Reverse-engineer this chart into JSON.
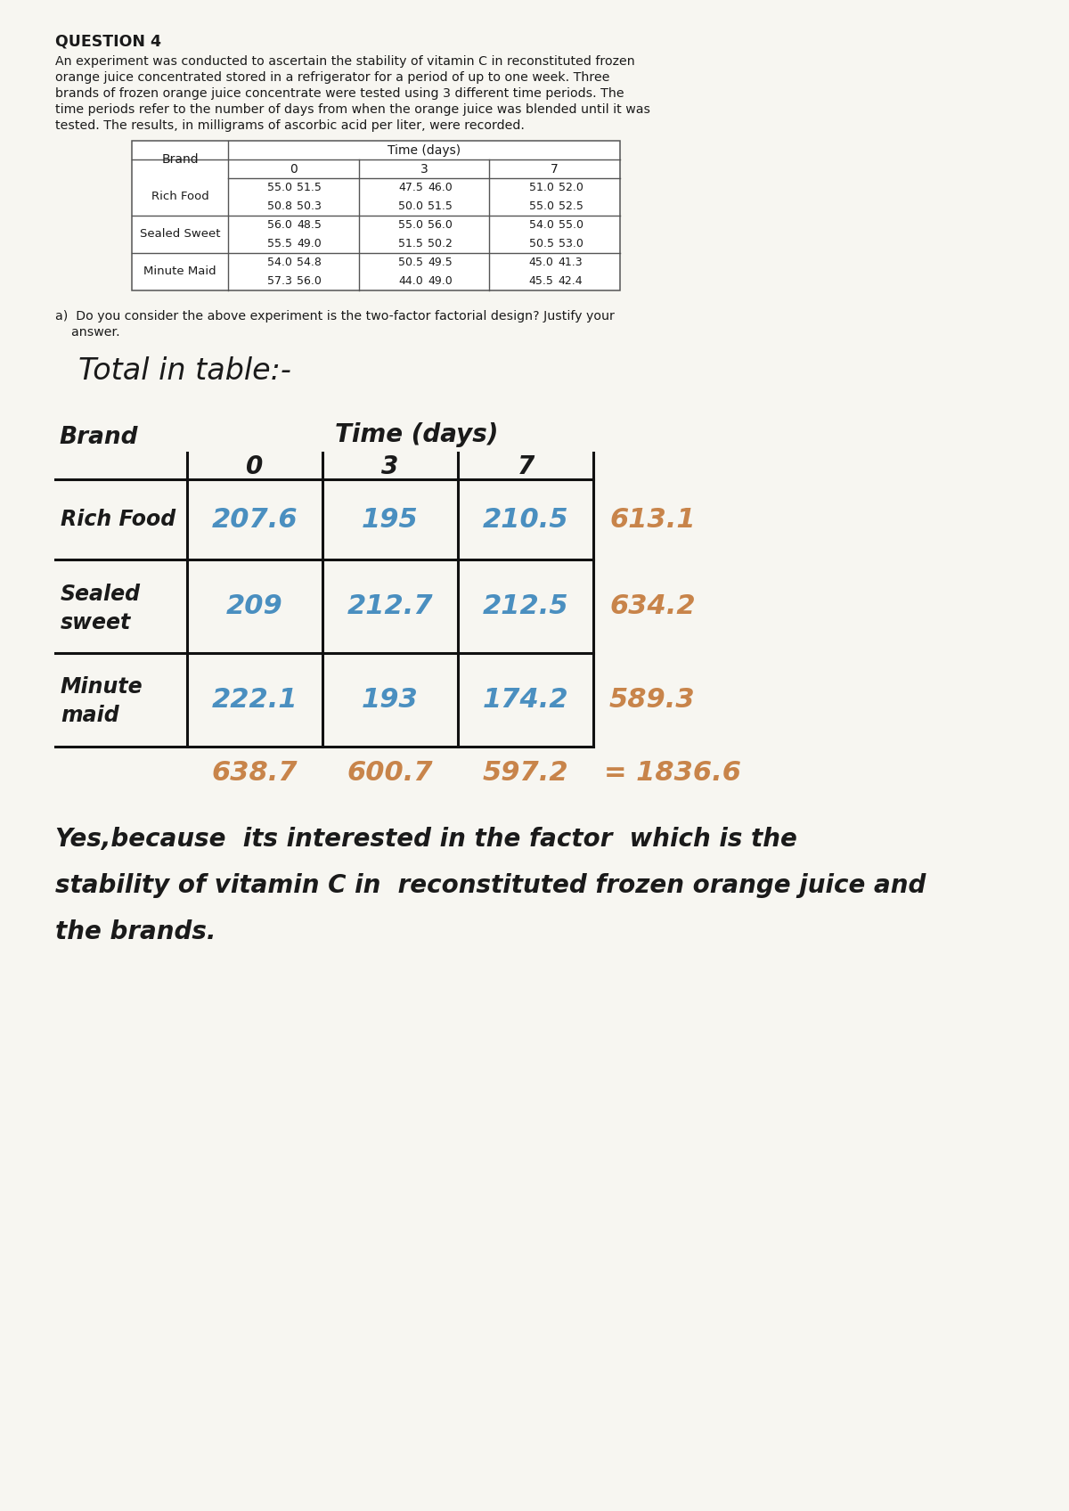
{
  "background_color": "#f7f6f1",
  "question_title": "QUESTION 4",
  "question_text": "An experiment was conducted to ascertain the stability of vitamin C in reconstituted frozen\norange juice concentrated stored in a refrigerator for a period of up to one week. Three\nbrands of frozen orange juice concentrate were tested using 3 different time periods. The\ntime periods refer to the number of days from when the orange juice was blended until it was\ntested. The results, in milligrams of ascorbic acid per liter, were recorded.",
  "data_table": {
    "col_header": "Time (days)",
    "col_subheaders": [
      "0",
      "3",
      "7"
    ],
    "brands": [
      "Rich Food",
      "Sealed Sweet",
      "Minute Maid"
    ],
    "row1": [
      [
        "55.0",
        "51.5"
      ],
      [
        "47.5",
        "46.0"
      ],
      [
        "51.0",
        "52.0"
      ]
    ],
    "row2": [
      [
        "50.8",
        "50.3"
      ],
      [
        "50.0",
        "51.5"
      ],
      [
        "55.0",
        "52.5"
      ]
    ],
    "row3": [
      [
        "56.0",
        "48.5"
      ],
      [
        "55.0",
        "56.0"
      ],
      [
        "54.0",
        "55.0"
      ]
    ],
    "row4": [
      [
        "55.5",
        "49.0"
      ],
      [
        "51.5",
        "50.2"
      ],
      [
        "50.5",
        "53.0"
      ]
    ],
    "row5": [
      [
        "54.0",
        "54.8"
      ],
      [
        "50.5",
        "49.5"
      ],
      [
        "45.0",
        "41.3"
      ]
    ],
    "row6": [
      [
        "57.3",
        "56.0"
      ],
      [
        "44.0",
        "49.0"
      ],
      [
        "45.5",
        "42.4"
      ]
    ]
  },
  "part_a_text": "a)  Do you consider the above experiment is the two-factor factorial design? Justify your\n    answer.",
  "total_label": "Total in table:-",
  "handwritten_table": {
    "col_subheaders": [
      "0",
      "3",
      "7"
    ],
    "data_blue": [
      [
        "207.6",
        "195",
        "210.5"
      ],
      [
        "209",
        "212.7",
        "212.5"
      ],
      [
        "222.1",
        "193",
        "174.2"
      ]
    ],
    "row_labels_line1": [
      "Rich Food",
      "Sealed",
      "Minute"
    ],
    "row_labels_line2": [
      "",
      "sweet",
      "maid"
    ],
    "row_totals": [
      "613.1",
      "634.2",
      "589.3"
    ],
    "col_totals": [
      "638.7",
      "600.7",
      "597.2"
    ],
    "grand_total": "= 1836.6"
  },
  "answer_text_line1": "Yes,because  its interested in the factor  which is the",
  "answer_text_line2": "stability of vitamin C in  reconstituted frozen orange juice and",
  "answer_text_line3": "the brands.",
  "blue_color": "#4a8fc0",
  "orange_color": "#c8844a",
  "black_color": "#1a1a1a",
  "gray_color": "#555555"
}
